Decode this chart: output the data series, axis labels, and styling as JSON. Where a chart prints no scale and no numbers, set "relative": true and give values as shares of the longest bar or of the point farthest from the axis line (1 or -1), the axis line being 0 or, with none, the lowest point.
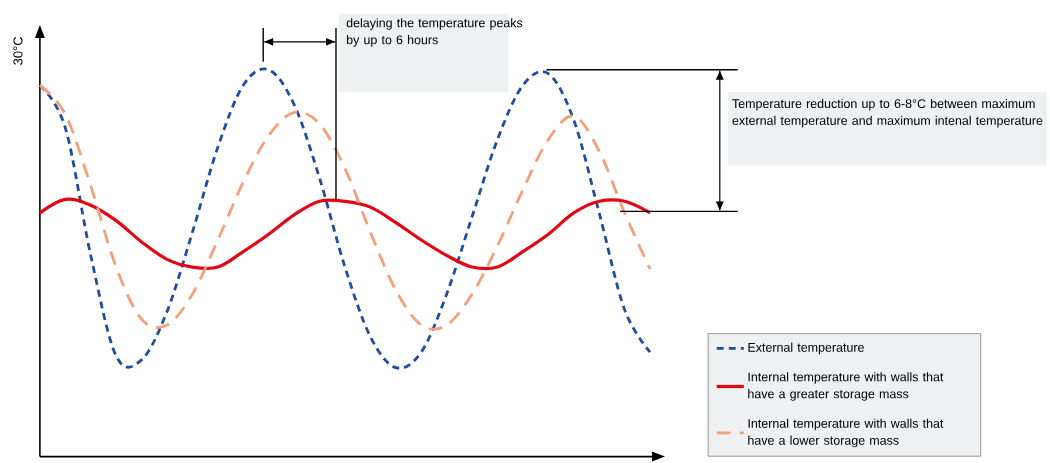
{
  "chart_data": {
    "type": "line",
    "relative": true,
    "ylabel": "30°C",
    "categories": [
      null,
      null,
      null,
      null,
      null,
      null,
      null,
      null,
      null,
      null,
      null,
      null,
      null,
      null,
      null,
      null,
      null,
      null,
      null,
      null,
      null,
      null,
      null,
      null,
      null
    ],
    "series": [
      {
        "name": "External temperature",
        "color": "#1f4e9c",
        "line_style": "dotted",
        "values": [
          0.96,
          0.85,
          0.52,
          0.26,
          0.25,
          0.375,
          0.58,
          0.8,
          0.96,
          1.0,
          0.91,
          0.72,
          0.49,
          0.31,
          0.23,
          0.27,
          0.42,
          0.62,
          0.82,
          0.96,
          0.99,
          0.87,
          0.63,
          0.38,
          0.27
        ]
      },
      {
        "name": "Internal temperature with walls that have a greater storage mass",
        "color": "#e30613",
        "line_style": "solid",
        "values": [
          0.63,
          0.665,
          0.65,
          0.61,
          0.555,
          0.51,
          0.49,
          0.49,
          0.53,
          0.575,
          0.625,
          0.66,
          0.66,
          0.645,
          0.605,
          0.56,
          0.52,
          0.49,
          0.49,
          0.53,
          0.575,
          0.63,
          0.66,
          0.66,
          0.63
        ]
      },
      {
        "name": "Internal temperature with walls that have a lower storage mass",
        "color": "#f4a07a",
        "line_style": "dashed",
        "values": [
          0.96,
          0.885,
          0.7,
          0.49,
          0.355,
          0.34,
          0.42,
          0.56,
          0.71,
          0.83,
          0.89,
          0.86,
          0.745,
          0.58,
          0.43,
          0.34,
          0.34,
          0.42,
          0.545,
          0.69,
          0.82,
          0.88,
          0.79,
          0.63,
          0.485
        ]
      }
    ],
    "legend": "bottom right",
    "marker": "none",
    "annotations": [
      "delaying the temperature peaks by up to 6 hours",
      "Temperature reduction up to 6-8°C between maximum external temperature and maximum intenal temperature"
    ]
  }
}
